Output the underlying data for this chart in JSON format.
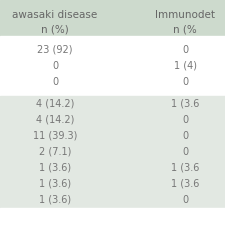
{
  "col1_header": "awasaki disease\nn (%)",
  "col2_header": "Immunodet\nn (%",
  "rows_col1": [
    "23 (92)",
    "0",
    "0",
    "4 (14.2)",
    "4 (14.2)",
    "11 (39.3)",
    "2 (7.1)",
    "1 (3.6)",
    "1 (3.6)",
    "1 (3.6)"
  ],
  "rows_col2": [
    "0",
    "1 (4)",
    "0",
    "1 (3.6",
    "0",
    "0",
    "0",
    "1 (3.6",
    "1 (3.6",
    "0"
  ],
  "section1_rows": 3,
  "section2_rows": 7,
  "header_bg": "#cddacd",
  "section1_bg": "#ffffff",
  "section2_bg": "#e2e8e2",
  "text_color": "#777777",
  "header_text_color": "#666666",
  "font_size": 7.0,
  "header_font_size": 7.5,
  "fig_width": 2.25,
  "fig_height": 2.25,
  "dpi": 100
}
